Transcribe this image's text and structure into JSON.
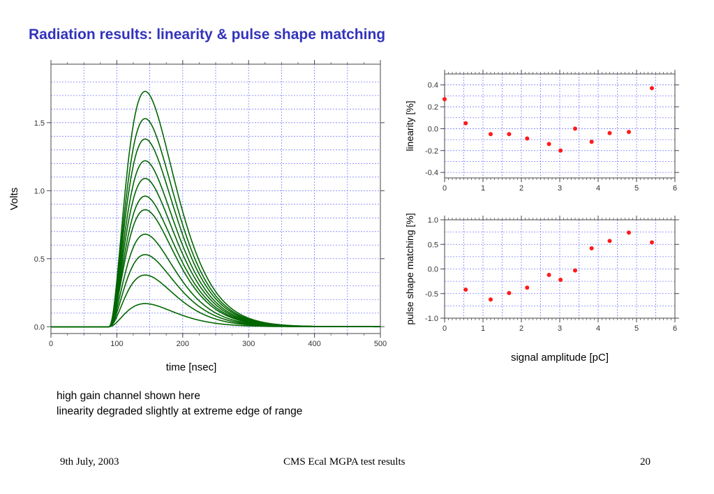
{
  "slide": {
    "title": "Radiation results: linearity & pulse shape matching",
    "notes": [
      "high gain channel shown here",
      "linearity degraded slightly at extreme edge of range"
    ],
    "footer": {
      "date": "9th July, 2003",
      "center": "CMS Ecal MGPA test results",
      "page": "20"
    }
  },
  "colors": {
    "title": "#3333bb",
    "pulse": "#006600",
    "marker": "#ff1a1a",
    "grid": "#7b7bff"
  },
  "chart_data": [
    {
      "type": "line",
      "xlabel": "time [nsec]",
      "ylabel": "Volts",
      "xlim": [
        0,
        500
      ],
      "ylim": [
        -0.05,
        1.93
      ],
      "xticks": [
        0,
        100,
        200,
        300,
        400,
        500
      ],
      "yticks": [
        0.0,
        0.5,
        1.0,
        1.5
      ],
      "grid": true,
      "pulse_start_ns": 88,
      "peak_time_ns": 143,
      "series": [
        {
          "peak": 1.73
        },
        {
          "peak": 1.53
        },
        {
          "peak": 1.38
        },
        {
          "peak": 1.22
        },
        {
          "peak": 1.09
        },
        {
          "peak": 0.96
        },
        {
          "peak": 0.86
        },
        {
          "peak": 0.68
        },
        {
          "peak": 0.53
        },
        {
          "peak": 0.38
        },
        {
          "peak": 0.17
        }
      ]
    },
    {
      "type": "scatter",
      "xlabel": "",
      "ylabel": "linearity [%]",
      "xlim": [
        0,
        6
      ],
      "ylim": [
        -0.45,
        0.5
      ],
      "xticks": [
        0,
        1,
        2,
        3,
        4,
        5,
        6
      ],
      "yticks": [
        -0.4,
        -0.2,
        0.0,
        0.2,
        0.4
      ],
      "grid": true,
      "points": [
        {
          "x": 0.0,
          "y": 0.27
        },
        {
          "x": 0.55,
          "y": 0.05
        },
        {
          "x": 1.2,
          "y": -0.05
        },
        {
          "x": 1.68,
          "y": -0.05
        },
        {
          "x": 2.15,
          "y": -0.09
        },
        {
          "x": 2.72,
          "y": -0.14
        },
        {
          "x": 3.02,
          "y": -0.2
        },
        {
          "x": 3.4,
          "y": 0.0
        },
        {
          "x": 3.83,
          "y": -0.12
        },
        {
          "x": 4.3,
          "y": -0.04
        },
        {
          "x": 4.8,
          "y": -0.03
        },
        {
          "x": 5.4,
          "y": 0.37
        }
      ]
    },
    {
      "type": "scatter",
      "xlabel": "signal amplitude [pC]",
      "ylabel": "pulse shape matching [%]",
      "xlim": [
        0,
        6
      ],
      "ylim": [
        -1.0,
        1.0
      ],
      "xticks": [
        0,
        1,
        2,
        3,
        4,
        5,
        6
      ],
      "yticks": [
        -1.0,
        -0.5,
        0.0,
        0.5,
        1.0
      ],
      "grid": true,
      "points": [
        {
          "x": 0.55,
          "y": -0.42
        },
        {
          "x": 1.2,
          "y": -0.62
        },
        {
          "x": 1.68,
          "y": -0.49
        },
        {
          "x": 2.15,
          "y": -0.38
        },
        {
          "x": 2.72,
          "y": -0.12
        },
        {
          "x": 3.02,
          "y": -0.22
        },
        {
          "x": 3.4,
          "y": -0.03
        },
        {
          "x": 3.83,
          "y": 0.42
        },
        {
          "x": 4.3,
          "y": 0.57
        },
        {
          "x": 4.8,
          "y": 0.74
        },
        {
          "x": 5.4,
          "y": 0.54
        }
      ]
    }
  ]
}
